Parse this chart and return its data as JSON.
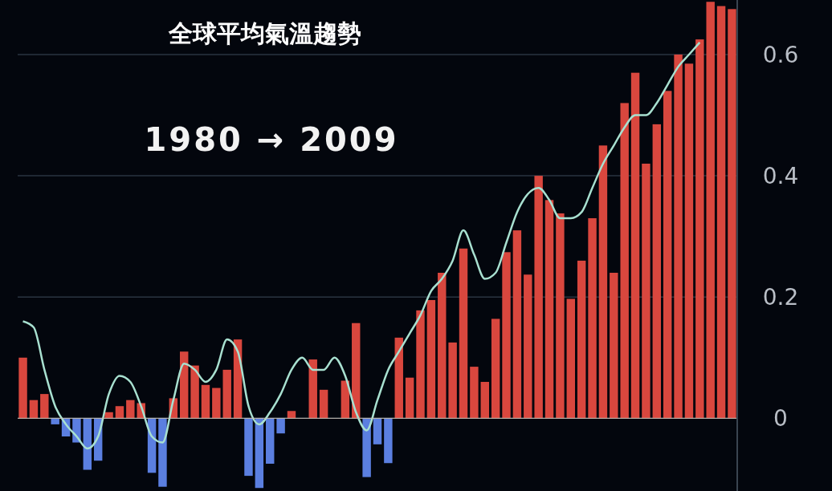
{
  "chart_data": {
    "type": "bar",
    "title": "全球平均氣溫趨勢",
    "subtitle": "1980 → 2009",
    "categories": [
      null,
      null,
      null,
      null,
      null,
      null,
      null,
      null,
      null,
      null,
      null,
      null,
      null,
      null,
      null,
      null,
      null,
      null,
      null,
      null,
      null,
      null,
      null,
      null,
      null,
      null,
      null,
      null,
      null,
      null,
      null,
      null,
      null,
      null,
      null,
      null,
      null,
      null,
      null,
      null,
      null,
      null,
      null,
      null,
      null,
      null,
      null,
      null,
      null,
      null,
      null,
      null,
      null,
      null,
      null,
      null,
      null,
      null,
      null,
      null,
      null,
      null,
      null,
      null,
      null,
      null,
      null
    ],
    "series": [
      {
        "values": [
          0.1,
          0.03,
          0.04,
          -0.01,
          -0.03,
          -0.04,
          -0.085,
          -0.07,
          0.01,
          0.02,
          0.03,
          0.025,
          -0.09,
          -0.113,
          0.033,
          0.11,
          0.087,
          0.055,
          0.05,
          0.08,
          0.13,
          -0.095,
          -0.115,
          -0.075,
          -0.025,
          0.012,
          0,
          0.097,
          0.047,
          0,
          0.062,
          0.157,
          -0.097,
          -0.043,
          -0.074,
          0.133,
          0.067,
          0.178,
          0.195,
          0.24,
          0.125,
          0.28,
          0.085,
          0.06,
          0.164,
          0.274,
          0.31,
          0.237,
          0.4,
          0.36,
          0.338,
          0.197,
          0.26,
          0.33,
          0.45,
          0.24,
          0.52,
          0.57,
          0.42,
          0.485,
          0.54,
          0.6,
          0.585,
          0.625,
          0.687,
          0.68,
          0.675
        ],
        "colors": [
          "#d9473e",
          "#d9473e",
          "#d9473e",
          "#5b7fe0",
          "#5b7fe0",
          "#5b7fe0",
          "#5b7fe0",
          "#5b7fe0",
          "#d9473e",
          "#d9473e",
          "#d9473e",
          "#d9473e",
          "#5b7fe0",
          "#5b7fe0",
          "#d9473e",
          "#d9473e",
          "#d9473e",
          "#d9473e",
          "#d9473e",
          "#d9473e",
          "#d9473e",
          "#5b7fe0",
          "#5b7fe0",
          "#5b7fe0",
          "#5b7fe0",
          "#d9473e",
          "#d9473e",
          "#d9473e",
          "#d9473e",
          "#d9473e",
          "#d9473e",
          "#d9473e",
          "#5b7fe0",
          "#5b7fe0",
          "#5b7fe0",
          "#d9473e",
          "#d9473e",
          "#d9473e",
          "#d9473e",
          "#d9473e",
          "#d9473e",
          "#d9473e",
          "#d9473e",
          "#d9473e",
          "#d9473e",
          "#d9473e",
          "#d9473e",
          "#d9473e",
          "#d9473e",
          "#d9473e",
          "#d9473e",
          "#d9473e",
          "#d9473e",
          "#d9473e",
          "#d9473e",
          "#d9473e",
          "#d9473e",
          "#d9473e",
          "#d9473e",
          "#d9473e",
          "#d9473e",
          "#d9473e",
          "#d9473e",
          "#d9473e",
          "#d9473e",
          "#d9473e",
          "#d9473e"
        ]
      },
      {
        "type": "line",
        "color": "#a8e0d0",
        "values": [
          0.16,
          0.15,
          0.08,
          0.02,
          -0.01,
          -0.03,
          -0.05,
          -0.03,
          0.04,
          0.07,
          0.06,
          0.02,
          -0.03,
          -0.04,
          0.03,
          0.09,
          0.08,
          0.06,
          0.08,
          0.13,
          0.11,
          0.02,
          -0.01,
          0.01,
          0.04,
          0.08,
          0.1,
          0.08,
          0.08,
          0.1,
          0.07,
          0.01,
          -0.02,
          0.03,
          0.08,
          0.11,
          0.14,
          0.17,
          0.21,
          0.23,
          0.26,
          0.31,
          0.27,
          0.23,
          0.24,
          0.29,
          0.34,
          0.37,
          0.38,
          0.36,
          0.33,
          0.33,
          0.34,
          0.38,
          0.42,
          0.45,
          0.48,
          0.5,
          0.5,
          0.52,
          0.55,
          0.58,
          0.6,
          0.62,
          null,
          null,
          null
        ]
      }
    ],
    "ylim": [
      -0.12,
      0.69
    ],
    "yticks": [
      0,
      0.2,
      0.4,
      0.6
    ],
    "grid": "y",
    "marker": "none",
    "line_style": "solid"
  }
}
